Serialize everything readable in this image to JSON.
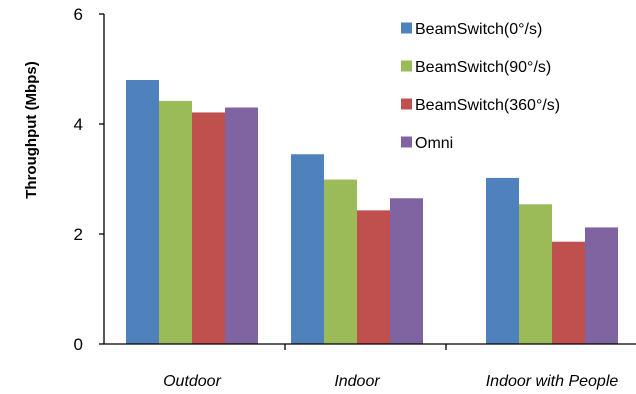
{
  "chart_data": {
    "type": "bar",
    "title": "",
    "xlabel": "",
    "ylabel": "Throughput (Mbps)",
    "ylim": [
      0,
      6
    ],
    "yticks": [
      0,
      2,
      4,
      6
    ],
    "grid": false,
    "legend_position": "top-right",
    "categories": [
      "Outdoor",
      "Indoor",
      "Indoor with People"
    ],
    "series": [
      {
        "name": "BeamSwitch(0°/s)",
        "color": "#4f81bd",
        "values": [
          4.8,
          3.45,
          3.02
        ]
      },
      {
        "name": "BeamSwitch(90°/s)",
        "color": "#9bbb59",
        "values": [
          4.42,
          2.99,
          2.54
        ]
      },
      {
        "name": "BeamSwitch(360°/s)",
        "color": "#c0504d",
        "values": [
          4.21,
          2.43,
          1.86
        ]
      },
      {
        "name": "Omni",
        "color": "#8064a2",
        "values": [
          4.3,
          2.65,
          2.12
        ]
      }
    ]
  }
}
